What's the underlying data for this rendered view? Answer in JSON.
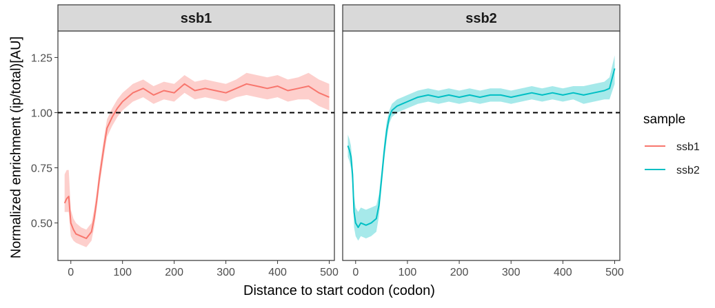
{
  "chart_data": {
    "type": "line",
    "xlabel": "Distance to start codon (codon)",
    "ylabel": "Normalized enrichment (ip/total)[AU]",
    "xlim": [
      -25,
      510
    ],
    "ylim": [
      0.33,
      1.37
    ],
    "x_ticks": [
      0,
      100,
      200,
      300,
      400,
      500
    ],
    "y_ticks": [
      0.5,
      0.75,
      1.0,
      1.25
    ],
    "y_tick_labels": [
      "0.50",
      "0.75",
      "1.00",
      "1.25"
    ],
    "reference_line": {
      "y": 1.0,
      "style": "dashed"
    },
    "legend": {
      "title": "sample",
      "position": "right"
    },
    "grid": false,
    "panels": [
      {
        "strip": "ssb1",
        "series": "ssb1",
        "color": "#F8766D",
        "x": [
          -12,
          -8,
          -4,
          0,
          5,
          10,
          20,
          30,
          40,
          45,
          50,
          55,
          60,
          65,
          70,
          80,
          90,
          100,
          110,
          120,
          140,
          160,
          180,
          200,
          220,
          240,
          260,
          280,
          300,
          320,
          340,
          360,
          380,
          400,
          420,
          440,
          460,
          480,
          500
        ],
        "y": [
          0.59,
          0.61,
          0.62,
          0.5,
          0.47,
          0.45,
          0.44,
          0.43,
          0.46,
          0.52,
          0.6,
          0.7,
          0.78,
          0.86,
          0.93,
          0.98,
          1.02,
          1.05,
          1.07,
          1.09,
          1.11,
          1.08,
          1.1,
          1.09,
          1.13,
          1.1,
          1.11,
          1.1,
          1.09,
          1.11,
          1.13,
          1.12,
          1.11,
          1.12,
          1.1,
          1.11,
          1.12,
          1.09,
          1.07
        ],
        "lower": [
          0.55,
          0.55,
          0.55,
          0.44,
          0.42,
          0.41,
          0.4,
          0.39,
          0.42,
          0.48,
          0.56,
          0.66,
          0.74,
          0.82,
          0.89,
          0.94,
          0.98,
          1.01,
          1.03,
          1.05,
          1.07,
          1.04,
          1.06,
          1.05,
          1.09,
          1.06,
          1.07,
          1.06,
          1.05,
          1.07,
          1.08,
          1.07,
          1.06,
          1.07,
          1.05,
          1.06,
          1.06,
          1.03,
          1.01
        ],
        "upper": [
          0.72,
          0.74,
          0.74,
          0.56,
          0.52,
          0.5,
          0.48,
          0.47,
          0.5,
          0.56,
          0.64,
          0.74,
          0.82,
          0.9,
          0.97,
          1.02,
          1.06,
          1.09,
          1.11,
          1.13,
          1.15,
          1.12,
          1.14,
          1.13,
          1.17,
          1.14,
          1.15,
          1.14,
          1.13,
          1.15,
          1.18,
          1.17,
          1.16,
          1.17,
          1.15,
          1.16,
          1.18,
          1.15,
          1.13
        ]
      },
      {
        "strip": "ssb2",
        "series": "ssb2",
        "color": "#00BFC4",
        "x": [
          -15,
          -12,
          -9,
          -6,
          -3,
          0,
          5,
          10,
          20,
          30,
          40,
          45,
          50,
          55,
          60,
          65,
          70,
          80,
          90,
          100,
          120,
          140,
          160,
          180,
          200,
          220,
          240,
          260,
          280,
          300,
          320,
          340,
          360,
          380,
          400,
          420,
          440,
          460,
          480,
          490,
          500
        ],
        "y": [
          0.85,
          0.83,
          0.8,
          0.72,
          0.55,
          0.5,
          0.48,
          0.5,
          0.49,
          0.5,
          0.52,
          0.58,
          0.7,
          0.82,
          0.92,
          0.98,
          1.01,
          1.03,
          1.04,
          1.05,
          1.07,
          1.08,
          1.07,
          1.08,
          1.07,
          1.08,
          1.07,
          1.08,
          1.08,
          1.07,
          1.08,
          1.09,
          1.08,
          1.09,
          1.08,
          1.09,
          1.08,
          1.09,
          1.1,
          1.11,
          1.2
        ],
        "lower": [
          0.8,
          0.78,
          0.75,
          0.67,
          0.48,
          0.44,
          0.42,
          0.44,
          0.43,
          0.44,
          0.46,
          0.53,
          0.66,
          0.78,
          0.88,
          0.95,
          0.98,
          1.0,
          1.01,
          1.02,
          1.04,
          1.05,
          1.04,
          1.05,
          1.04,
          1.05,
          1.04,
          1.05,
          1.05,
          1.04,
          1.05,
          1.06,
          1.05,
          1.06,
          1.05,
          1.06,
          1.04,
          1.05,
          1.06,
          1.06,
          1.13
        ],
        "upper": [
          0.9,
          0.88,
          0.85,
          0.77,
          0.62,
          0.57,
          0.55,
          0.57,
          0.56,
          0.57,
          0.58,
          0.63,
          0.74,
          0.86,
          0.96,
          1.01,
          1.04,
          1.06,
          1.07,
          1.08,
          1.1,
          1.11,
          1.1,
          1.11,
          1.1,
          1.11,
          1.1,
          1.11,
          1.11,
          1.1,
          1.11,
          1.12,
          1.11,
          1.12,
          1.11,
          1.12,
          1.12,
          1.13,
          1.14,
          1.16,
          1.26
        ]
      }
    ]
  }
}
